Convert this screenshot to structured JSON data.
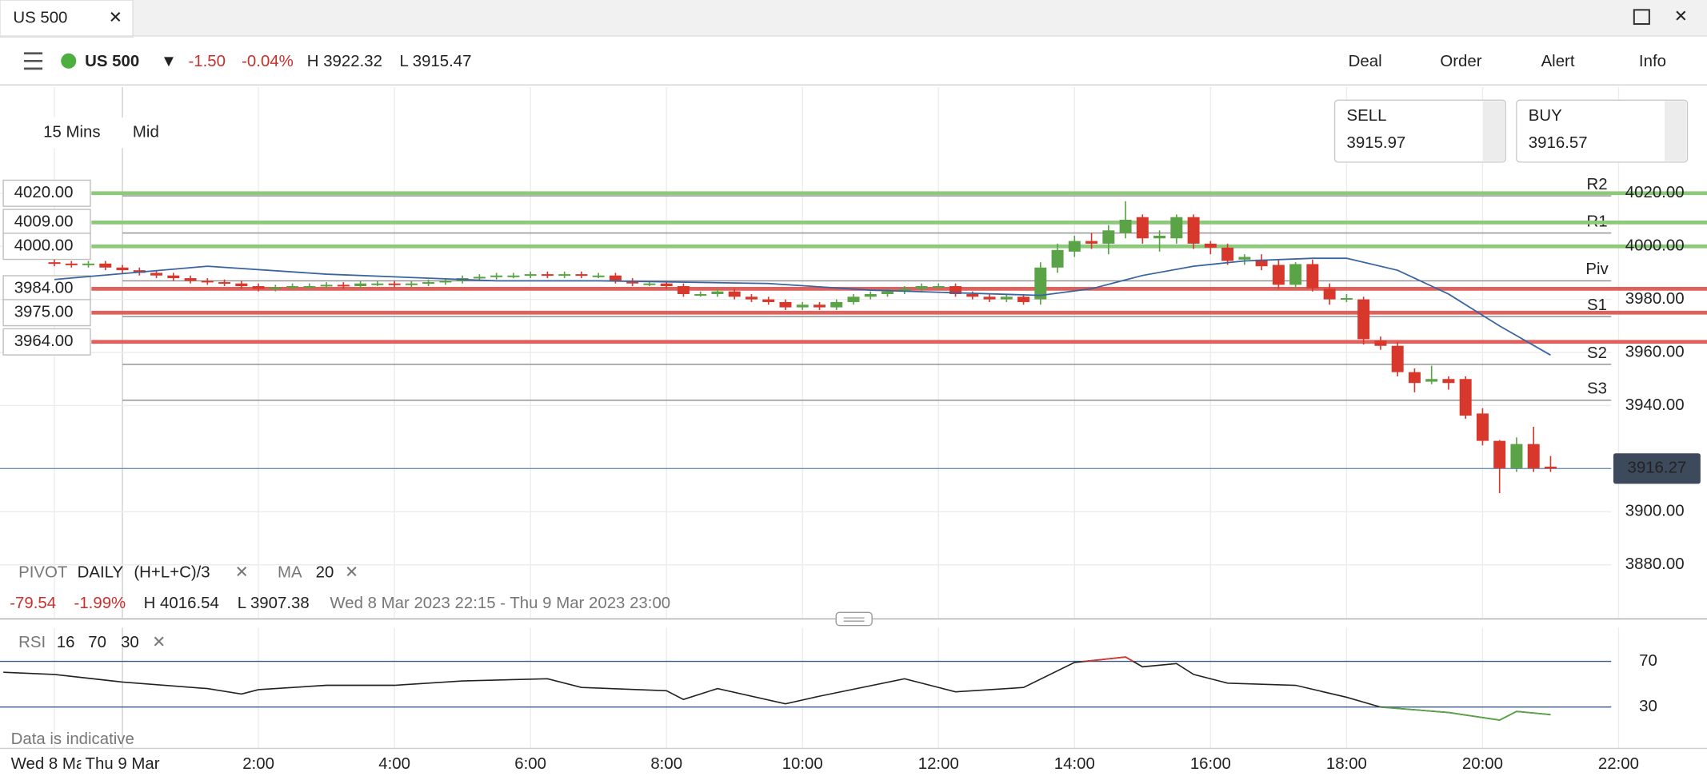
{
  "window": {
    "tab": "US 500"
  },
  "toolbar": {
    "instrument": "US 500",
    "change": "-1.50",
    "change_pct": "-0.04%",
    "high": "H 3922.32",
    "low": "L 3915.47",
    "actions": [
      "Deal",
      "Order",
      "Alert",
      "Info"
    ]
  },
  "quote": {
    "sell_label": "SELL",
    "sell": "3915.97",
    "buy_label": "BUY",
    "buy": "3916.57"
  },
  "settings": {
    "interval": "15 Mins",
    "price_type": "Mid"
  },
  "indicators": {
    "pivot": [
      "PIVOT",
      "DAILY",
      "(H+L+C)/3"
    ],
    "ma": [
      "MA",
      "20"
    ],
    "rsi": [
      "RSI",
      "16",
      "70",
      "30"
    ]
  },
  "stats": {
    "change": "-79.54",
    "change_pct": "-1.99%",
    "high": "H 4016.54",
    "low": "L 3907.38",
    "range": "Wed 8 Mar 2023 22:15 - Thu 9 Mar 2023 23:00"
  },
  "note": "Data is indicative",
  "chart_data": [
    {
      "type": "candlestick",
      "x": [
        -1,
        -0.75,
        -0.5,
        -0.25,
        0,
        0.25,
        0.5,
        0.75,
        1,
        1.25,
        1.5,
        1.75,
        2,
        2.25,
        2.5,
        2.75,
        3,
        3.25,
        3.5,
        3.75,
        4,
        4.25,
        4.5,
        4.75,
        5,
        5.25,
        5.5,
        5.75,
        6,
        6.25,
        6.5,
        6.75,
        7,
        7.25,
        7.5,
        7.75,
        8,
        8.25,
        8.5,
        8.75,
        9,
        9.25,
        9.5,
        9.75,
        10,
        10.25,
        10.5,
        10.75,
        11,
        11.25,
        11.5,
        11.75,
        12,
        12.25,
        12.5,
        12.75,
        13,
        13.25,
        13.5,
        13.75,
        14,
        14.25,
        14.5,
        14.75,
        15,
        15.25,
        15.5,
        15.75,
        16,
        16.25,
        16.5,
        16.75,
        17,
        17.25,
        17.5,
        17.75,
        18,
        18.25,
        18.5,
        18.75,
        19,
        19.25,
        19.5,
        19.75,
        20,
        20.25,
        20.5,
        20.75,
        21
      ],
      "open": [
        3994,
        3993.5,
        3993,
        3993.5,
        3992,
        3991,
        3990,
        3989,
        3988,
        3987,
        3986.5,
        3986,
        3985,
        3984,
        3984.5,
        3985,
        3985,
        3985.5,
        3985,
        3986,
        3986,
        3985.5,
        3986,
        3986.5,
        3987,
        3988,
        3988.5,
        3989,
        3989,
        3989.5,
        3989,
        3989.5,
        3989,
        3989,
        3987,
        3986,
        3986,
        3985,
        3982,
        3982,
        3983,
        3981,
        3980,
        3979,
        3977,
        3978,
        3977,
        3979,
        3981,
        3982,
        3983,
        3984,
        3985,
        3985,
        3982,
        3981,
        3980,
        3981,
        3980,
        3992,
        3998,
        4002,
        4001,
        4005,
        4011,
        4003,
        4003,
        4011,
        4001,
        3999.5,
        3995,
        3995,
        3993,
        3985.5,
        3993.3,
        3984,
        3980,
        3980,
        3964.5,
        3962.5,
        3952.6,
        3949,
        3950,
        3950,
        3937,
        3926.7,
        3916.4,
        3925.5,
        3917
      ],
      "high": [
        3995,
        3994.5,
        3994.5,
        3994.5,
        3993,
        3992,
        3991,
        3990,
        3989,
        3988,
        3987.5,
        3987,
        3986,
        3985.5,
        3986,
        3986,
        3986.5,
        3986.5,
        3987,
        3987,
        3987,
        3987,
        3987.5,
        3988,
        3989,
        3989.5,
        3990,
        3990,
        3990.5,
        3990.5,
        3990.5,
        3990.5,
        3990,
        3990,
        3988,
        3987,
        3987,
        3986,
        3983,
        3984,
        3984,
        3982,
        3981,
        3980,
        3979,
        3979,
        3980,
        3982,
        3983,
        3984,
        3985,
        3986,
        3986,
        3986,
        3983,
        3982,
        3982,
        3982,
        3994,
        4001,
        4004,
        4005,
        4008,
        4017,
        4012,
        4006,
        4012,
        4012,
        4002,
        4001,
        3997,
        3997,
        3995,
        3994,
        3995,
        3986,
        3982,
        3981,
        3966,
        3964,
        3954,
        3955,
        3951,
        3951,
        3939,
        3927,
        3928,
        3932,
        3921
      ],
      "low": [
        3992.5,
        3992,
        3992,
        3991,
        3990,
        3989,
        3988,
        3987,
        3986,
        3985.5,
        3985,
        3984,
        3983,
        3983,
        3983.5,
        3984,
        3984,
        3984,
        3984,
        3985,
        3984.5,
        3984.5,
        3985,
        3985.5,
        3986,
        3987,
        3987.5,
        3988,
        3988,
        3988,
        3988,
        3988,
        3988,
        3986,
        3985,
        3985,
        3984,
        3981,
        3981,
        3981,
        3980,
        3979,
        3978,
        3976,
        3976,
        3976,
        3976,
        3978,
        3980,
        3981,
        3982,
        3983,
        3984,
        3981,
        3980,
        3979,
        3979,
        3978,
        3978,
        3990,
        3996,
        3999,
        3997,
        4003,
        4001,
        3998,
        4001,
        3999,
        3997,
        3993,
        3993,
        3991,
        3984,
        3984,
        3983,
        3978,
        3979,
        3963,
        3961,
        3951,
        3945,
        3948,
        3946,
        3935,
        3925,
        3907,
        3915,
        3915,
        3915
      ],
      "close": [
        3993.5,
        3993,
        3993.5,
        3992,
        3991,
        3990,
        3989,
        3988,
        3987,
        3986.5,
        3986,
        3985,
        3984,
        3984.5,
        3985,
        3985,
        3985.5,
        3985,
        3986,
        3986,
        3985.5,
        3986,
        3986.5,
        3987,
        3988,
        3988.5,
        3989,
        3989,
        3989.5,
        3989,
        3989.5,
        3989,
        3989,
        3987,
        3986,
        3986,
        3985,
        3982,
        3982,
        3983,
        3981,
        3980,
        3979,
        3977,
        3978,
        3977,
        3979,
        3981,
        3982,
        3983,
        3984,
        3985,
        3985,
        3982,
        3981,
        3980,
        3981,
        3979,
        3992,
        3998.6,
        4002,
        4001,
        4006,
        4010,
        4003,
        4004,
        4011,
        4001,
        3999.5,
        3994.5,
        3996,
        3992.5,
        3985.5,
        3993.3,
        3984.2,
        3980,
        3980.5,
        3965,
        3962.5,
        3952.6,
        3948.5,
        3950,
        3948.5,
        3936.2,
        3926.7,
        3916.4,
        3925.5,
        3916.4,
        3916.3
      ],
      "up_color": "#5aa346",
      "down_color": "#d8382c",
      "moving_average": {
        "color": "#3a64a0",
        "x": [
          -1,
          1.25,
          3,
          5.5,
          7,
          9.5,
          11,
          13.5,
          14.25,
          15,
          15.75,
          16.5,
          17.5,
          18,
          18.75,
          19.5,
          20.25,
          21
        ],
        "values": [
          3987.5,
          3992.5,
          3989.5,
          3987,
          3987,
          3986,
          3983.5,
          3981.5,
          3984,
          3989,
          3992.5,
          3994.5,
          3995.5,
          3995.5,
          3991,
          3982,
          3970,
          3959
        ]
      },
      "pivots": {
        "color": "#8a8a8a",
        "levels": [
          {
            "name": "R2",
            "value": 4019
          },
          {
            "name": "R1",
            "value": 4005
          },
          {
            "name": "Piv",
            "value": 3987
          },
          {
            "name": "S1",
            "value": 3973.5
          },
          {
            "name": "S2",
            "value": 3955.5
          },
          {
            "name": "S3",
            "value": 3942
          }
        ]
      },
      "price_levels": [
        {
          "value": 4020,
          "label": "4020.00",
          "color": "#8cc97a"
        },
        {
          "value": 4009,
          "label": "4009.00",
          "color": "#8cc97a"
        },
        {
          "value": 4000,
          "label": "4000.00",
          "color": "#8cc97a"
        },
        {
          "value": 3984,
          "label": "3984.00",
          "color": "#e0615c"
        },
        {
          "value": 3975,
          "label": "3975.00",
          "color": "#e0615c"
        },
        {
          "value": 3964,
          "label": "3964.00",
          "color": "#e0615c"
        }
      ],
      "current_price": 3916.27,
      "xlim": [
        -1.8,
        23.3
      ],
      "ylim": [
        3860,
        4060
      ],
      "xticks": [
        {
          "value": -1,
          "label": "Wed 8 Mar"
        },
        {
          "value": 0,
          "label": "Thu 9 Mar"
        },
        {
          "value": 2,
          "label": "2:00"
        },
        {
          "value": 4,
          "label": "4:00"
        },
        {
          "value": 6,
          "label": "6:00"
        },
        {
          "value": 8,
          "label": "8:00"
        },
        {
          "value": 10,
          "label": "10:00"
        },
        {
          "value": 12,
          "label": "12:00"
        },
        {
          "value": 14,
          "label": "14:00"
        },
        {
          "value": 16,
          "label": "16:00"
        },
        {
          "value": 18,
          "label": "18:00"
        },
        {
          "value": 20,
          "label": "20:00"
        },
        {
          "value": 22,
          "label": "22:00"
        }
      ],
      "yticks": [
        {
          "value": 4020,
          "label": "4020.00"
        },
        {
          "value": 4000,
          "label": "4000.00"
        },
        {
          "value": 3980,
          "label": "3980.00"
        },
        {
          "value": 3960,
          "label": "3960.00"
        },
        {
          "value": 3940,
          "label": "3940.00"
        },
        {
          "value": 3900,
          "label": "3900.00"
        },
        {
          "value": 3880,
          "label": "3880.00"
        }
      ],
      "grid": true
    },
    {
      "type": "line",
      "x": [
        -1.75,
        -1,
        0,
        1.25,
        1.75,
        2,
        3,
        4,
        5,
        6.25,
        6.75,
        8,
        8.25,
        8.75,
        9.75,
        10.25,
        11.5,
        12.25,
        13.25,
        14,
        14.75,
        15,
        15.5,
        15.75,
        16.25,
        17.25,
        18,
        18.5,
        19.5,
        20.25,
        20.5,
        21
      ],
      "values": [
        60.5,
        58.6,
        51.9,
        46.2,
        41.4,
        45.2,
        49,
        49,
        52.9,
        54.8,
        47.1,
        44.3,
        36.7,
        46.2,
        32.9,
        39.5,
        54.8,
        43.3,
        47.1,
        69,
        73.8,
        65.2,
        68.1,
        58.6,
        51,
        49,
        38.6,
        30,
        25.2,
        18.6,
        26.2,
        23.3
      ],
      "color": "#222222",
      "overbought_color": "#d8382c",
      "oversold_color": "#5aa346",
      "threshold_color": "#3a5a8a",
      "xlim": [
        -1.8,
        23.3
      ],
      "ylim": [
        0,
        100
      ],
      "yticks": [
        70,
        30
      ]
    }
  ]
}
